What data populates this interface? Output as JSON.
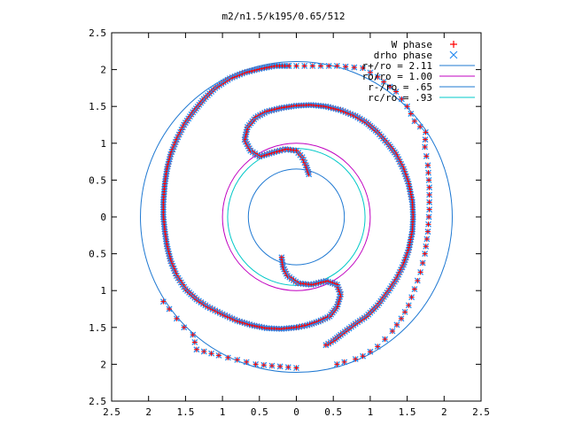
{
  "chart_data": {
    "type": "scatter",
    "title": "m2/n1.5/k195/0.65/512",
    "xlabel": "",
    "ylabel": "",
    "xlim": [
      -2.5,
      2.5
    ],
    "ylim": [
      -2.5,
      2.5
    ],
    "grid": false,
    "legend_position": "top-right",
    "x_ticks": [
      {
        "value": -2.5,
        "label": "2.5"
      },
      {
        "value": -2,
        "label": "2"
      },
      {
        "value": -1.5,
        "label": "1.5"
      },
      {
        "value": -1,
        "label": "1"
      },
      {
        "value": -0.5,
        "label": "0.5"
      },
      {
        "value": 0,
        "label": "0"
      },
      {
        "value": 0.5,
        "label": "0.5"
      },
      {
        "value": 1,
        "label": "1"
      },
      {
        "value": 1.5,
        "label": "1.5"
      },
      {
        "value": 2,
        "label": "2"
      },
      {
        "value": 2.5,
        "label": "2.5"
      }
    ],
    "y_ticks": [
      {
        "value": 2.5,
        "label": "2.5"
      },
      {
        "value": 2,
        "label": "2"
      },
      {
        "value": 1.5,
        "label": "1.5"
      },
      {
        "value": 1,
        "label": "1"
      },
      {
        "value": 0.5,
        "label": "0.5"
      },
      {
        "value": 0,
        "label": "0"
      },
      {
        "value": -0.5,
        "label": "0.5"
      },
      {
        "value": -1,
        "label": "1"
      },
      {
        "value": -1.5,
        "label": "1.5"
      },
      {
        "value": -2,
        "label": "2"
      },
      {
        "value": -2.5,
        "label": "2.5"
      }
    ],
    "scatter_series": [
      {
        "name": "W phase",
        "marker": "plus",
        "color": "#ff0000"
      },
      {
        "name": "drho phase",
        "marker": "cross",
        "color": "#2a8cf0"
      }
    ],
    "circles": [
      {
        "name": "r+/ro = 2.11",
        "radius": 2.11,
        "color": "#1e78d2"
      },
      {
        "name": "ro/ro = 1.00",
        "radius": 1.0,
        "color": "#c000c0"
      },
      {
        "name": "r-/ro = .65",
        "radius": 0.65,
        "color": "#1e78d2"
      },
      {
        "name": "rc/ro = .93",
        "radius": 0.93,
        "color": "#00c8c8"
      }
    ],
    "arms": [
      {
        "part": "inner",
        "points": [
          [
            0.17,
            0.58
          ],
          [
            0.13,
            0.7
          ],
          [
            0.08,
            0.81
          ],
          [
            0.0,
            0.9
          ],
          [
            -0.15,
            0.92
          ],
          [
            -0.3,
            0.88
          ],
          [
            -0.5,
            0.82
          ],
          [
            -0.62,
            0.9
          ],
          [
            -0.7,
            1.05
          ],
          [
            -0.66,
            1.22
          ],
          [
            -0.55,
            1.35
          ],
          [
            -0.4,
            1.43
          ],
          [
            -0.2,
            1.48
          ],
          [
            0.0,
            1.51
          ],
          [
            0.2,
            1.52
          ],
          [
            0.4,
            1.5
          ],
          [
            0.6,
            1.45
          ],
          [
            0.8,
            1.37
          ],
          [
            0.95,
            1.28
          ],
          [
            1.1,
            1.15
          ],
          [
            1.25,
            0.98
          ],
          [
            1.35,
            0.85
          ],
          [
            1.45,
            0.65
          ],
          [
            1.52,
            0.45
          ],
          [
            1.57,
            0.2
          ],
          [
            1.58,
            0.0
          ],
          [
            1.57,
            -0.2
          ],
          [
            1.52,
            -0.45
          ],
          [
            1.45,
            -0.65
          ],
          [
            1.35,
            -0.85
          ],
          [
            1.25,
            -1.0
          ],
          [
            1.1,
            -1.2
          ],
          [
            0.95,
            -1.35
          ],
          [
            0.8,
            -1.45
          ],
          [
            0.6,
            -1.6
          ],
          [
            0.5,
            -1.68
          ],
          [
            0.4,
            -1.74
          ]
        ]
      },
      {
        "part": "outer",
        "points": [
          [
            -0.12,
            2.05
          ],
          [
            -0.3,
            2.05
          ],
          [
            -0.5,
            2.01
          ],
          [
            -0.7,
            1.96
          ],
          [
            -0.9,
            1.88
          ],
          [
            -1.1,
            1.75
          ],
          [
            -1.25,
            1.6
          ],
          [
            -1.4,
            1.42
          ],
          [
            -1.52,
            1.25
          ],
          [
            -1.62,
            1.05
          ],
          [
            -1.7,
            0.85
          ],
          [
            -1.75,
            0.65
          ],
          [
            -1.78,
            0.45
          ],
          [
            -1.8,
            0.2
          ],
          [
            -1.8,
            0.0
          ],
          [
            -1.78,
            -0.2
          ],
          [
            -1.75,
            -0.4
          ],
          [
            -1.7,
            -0.6
          ],
          [
            -1.62,
            -0.8
          ],
          [
            -1.5,
            -0.98
          ],
          [
            -1.35,
            -1.12
          ],
          [
            -1.2,
            -1.22
          ],
          [
            -1.0,
            -1.32
          ],
          [
            -0.8,
            -1.41
          ],
          [
            -0.6,
            -1.47
          ],
          [
            -0.4,
            -1.51
          ],
          [
            -0.2,
            -1.52
          ],
          [
            0.0,
            -1.5
          ],
          [
            0.15,
            -1.47
          ],
          [
            0.3,
            -1.42
          ],
          [
            0.45,
            -1.35
          ],
          [
            0.55,
            -1.22
          ],
          [
            0.6,
            -1.05
          ],
          [
            0.55,
            -0.92
          ],
          [
            0.4,
            -0.87
          ],
          [
            0.2,
            -0.92
          ],
          [
            0.02,
            -0.9
          ],
          [
            -0.12,
            -0.8
          ],
          [
            -0.18,
            -0.68
          ],
          [
            -0.2,
            -0.55
          ]
        ]
      },
      {
        "part": "left-tail",
        "points": [
          [
            -1.8,
            -1.15
          ],
          [
            -1.72,
            -1.25
          ],
          [
            -1.62,
            -1.38
          ],
          [
            -1.52,
            -1.5
          ],
          [
            -1.4,
            -1.6
          ],
          [
            -1.35,
            -1.8
          ],
          [
            -1.05,
            -1.88
          ],
          [
            -0.55,
            -2.0
          ],
          [
            0.0,
            -2.05
          ]
        ]
      },
      {
        "part": "right-tail",
        "points": [
          [
            0.55,
            -2.0
          ],
          [
            0.65,
            -1.97
          ],
          [
            0.8,
            -1.93
          ],
          [
            0.9,
            -1.89
          ],
          [
            1.0,
            -1.83
          ],
          [
            1.1,
            -1.76
          ],
          [
            1.2,
            -1.66
          ],
          [
            1.3,
            -1.55
          ],
          [
            1.42,
            -1.38
          ],
          [
            1.52,
            -1.2
          ],
          [
            1.6,
            -0.98
          ],
          [
            1.68,
            -0.75
          ],
          [
            1.74,
            -0.5
          ],
          [
            1.78,
            -0.2
          ],
          [
            1.8,
            0.1
          ],
          [
            1.8,
            0.4
          ],
          [
            1.78,
            0.7
          ],
          [
            1.74,
            0.95
          ],
          [
            1.75,
            1.15
          ],
          [
            1.6,
            1.3
          ],
          [
            1.5,
            1.5
          ],
          [
            1.35,
            1.7
          ],
          [
            1.1,
            1.9
          ],
          [
            0.9,
            2.02
          ],
          [
            0.55,
            2.05
          ],
          [
            0.0,
            2.05
          ],
          [
            -0.1,
            2.05
          ]
        ]
      }
    ]
  }
}
